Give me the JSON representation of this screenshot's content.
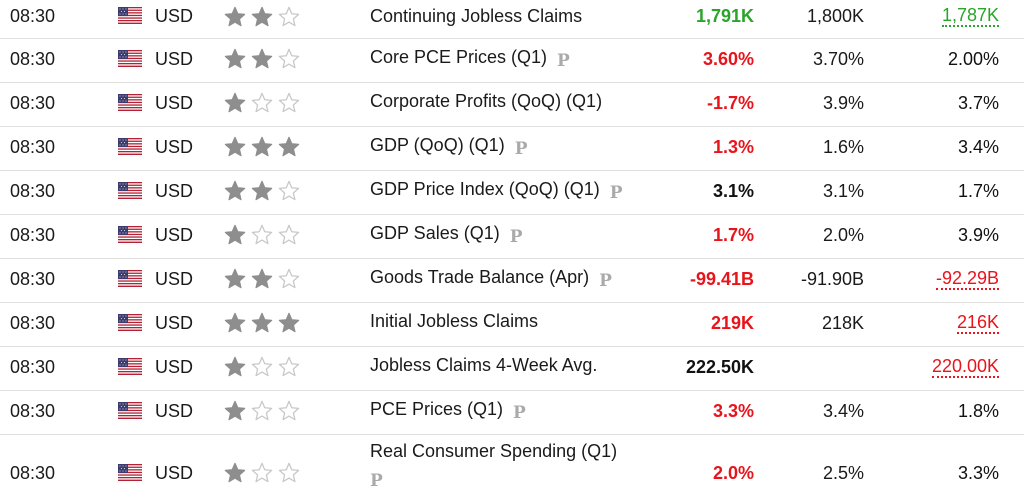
{
  "colors": {
    "green": "#2aa52a",
    "red": "#e8141b",
    "star_filled": "#8e8e8e",
    "star_empty": "#c8c8c8"
  },
  "rows": [
    {
      "time": "08:30",
      "currency": "USD",
      "importance": 2,
      "event": "Continuing Jobless Claims",
      "prelim": false,
      "actual": "1,791K",
      "actual_color": "green",
      "forecast": "1,800K",
      "previous": "1,787K",
      "previous_color": "green",
      "previous_revised": true
    },
    {
      "time": "08:30",
      "currency": "USD",
      "importance": 2,
      "event": "Core PCE Prices (Q1)",
      "prelim": true,
      "actual": "3.60%",
      "actual_color": "red",
      "forecast": "3.70%",
      "previous": "2.00%",
      "previous_color": "black",
      "previous_revised": false
    },
    {
      "time": "08:30",
      "currency": "USD",
      "importance": 1,
      "event": "Corporate Profits (QoQ) (Q1)",
      "prelim": false,
      "actual": "-1.7%",
      "actual_color": "red",
      "forecast": "3.9%",
      "previous": "3.7%",
      "previous_color": "black",
      "previous_revised": false
    },
    {
      "time": "08:30",
      "currency": "USD",
      "importance": 3,
      "event": "GDP (QoQ) (Q1)",
      "prelim": true,
      "actual": "1.3%",
      "actual_color": "red",
      "forecast": "1.6%",
      "previous": "3.4%",
      "previous_color": "black",
      "previous_revised": false
    },
    {
      "time": "08:30",
      "currency": "USD",
      "importance": 2,
      "event": "GDP Price Index (QoQ) (Q1)",
      "prelim": true,
      "actual": "3.1%",
      "actual_color": "black",
      "forecast": "3.1%",
      "previous": "1.7%",
      "previous_color": "black",
      "previous_revised": false
    },
    {
      "time": "08:30",
      "currency": "USD",
      "importance": 1,
      "event": "GDP Sales (Q1)",
      "prelim": true,
      "actual": "1.7%",
      "actual_color": "red",
      "forecast": "2.0%",
      "previous": "3.9%",
      "previous_color": "black",
      "previous_revised": false
    },
    {
      "time": "08:30",
      "currency": "USD",
      "importance": 2,
      "event": "Goods Trade Balance (Apr)",
      "prelim": true,
      "actual": "-99.41B",
      "actual_color": "red",
      "forecast": "-91.90B",
      "previous": "-92.29B",
      "previous_color": "red",
      "previous_revised": true
    },
    {
      "time": "08:30",
      "currency": "USD",
      "importance": 3,
      "event": "Initial Jobless Claims",
      "prelim": false,
      "actual": "219K",
      "actual_color": "red",
      "forecast": "218K",
      "previous": "216K",
      "previous_color": "red",
      "previous_revised": true
    },
    {
      "time": "08:30",
      "currency": "USD",
      "importance": 1,
      "event": "Jobless Claims 4-Week Avg.",
      "prelim": false,
      "actual": "222.50K",
      "actual_color": "black",
      "forecast": "",
      "previous": "220.00K",
      "previous_color": "red",
      "previous_revised": true
    },
    {
      "time": "08:30",
      "currency": "USD",
      "importance": 1,
      "event": "PCE Prices (Q1)",
      "prelim": true,
      "actual": "3.3%",
      "actual_color": "red",
      "forecast": "3.4%",
      "previous": "1.8%",
      "previous_color": "black",
      "previous_revised": false
    },
    {
      "time": "08:30",
      "currency": "USD",
      "importance": 1,
      "event": "Real Consumer Spending (Q1)",
      "prelim": true,
      "actual": "2.0%",
      "actual_color": "red",
      "forecast": "2.5%",
      "previous": "3.3%",
      "previous_color": "black",
      "previous_revised": false
    }
  ],
  "prelim_badge": "P",
  "flag_icon": "us-flag-icon",
  "star_icon": "star-icon"
}
